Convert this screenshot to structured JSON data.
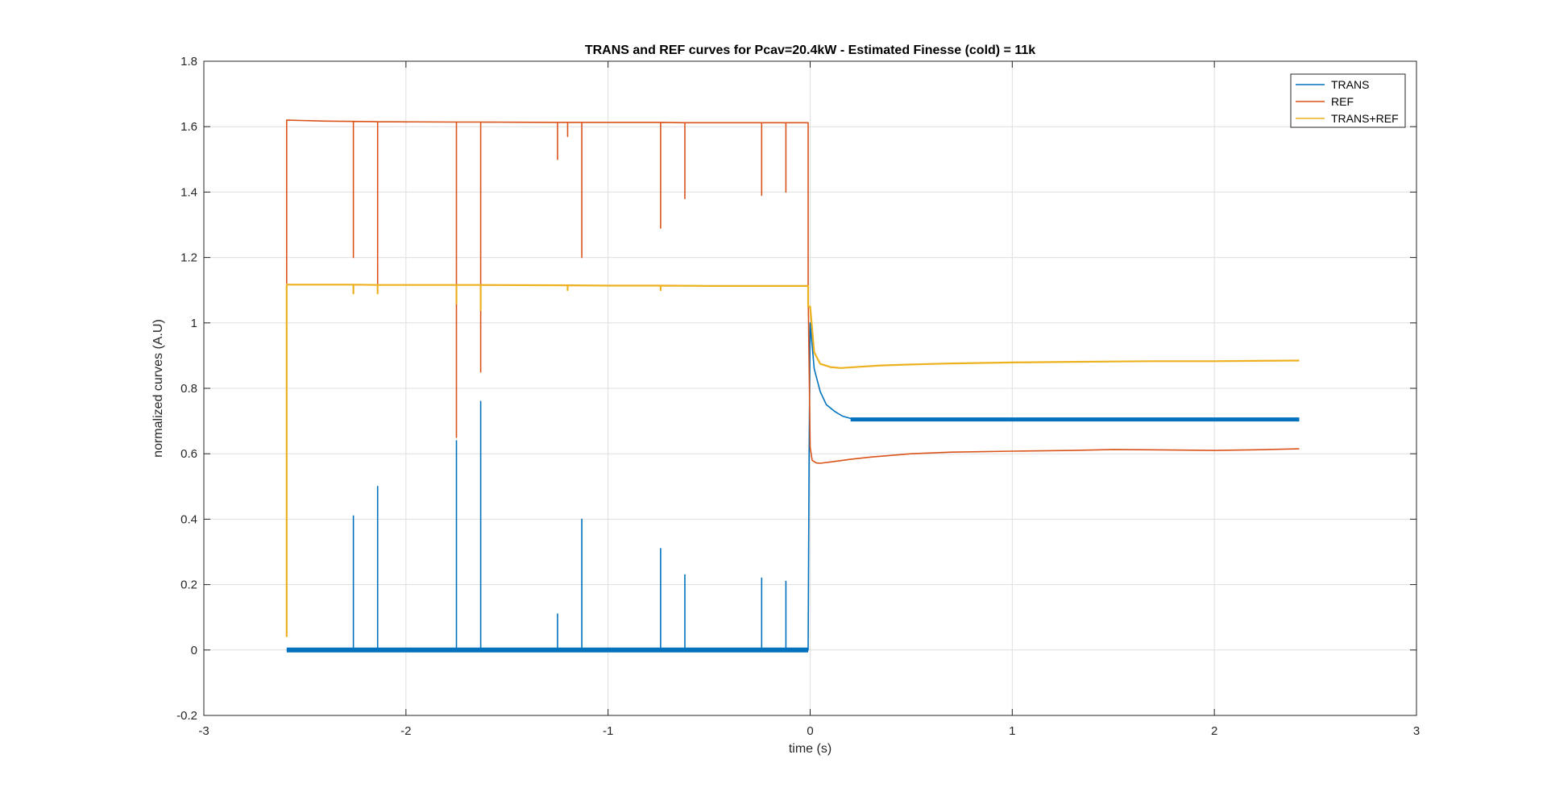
{
  "chart_data": {
    "type": "line",
    "title": "TRANS and REF curves for Pcav=20.4kW - Estimated Finesse (cold) = 11k",
    "xlabel": "time (s)",
    "ylabel": "normalized curves (A.U)",
    "xlim": [
      -3,
      3
    ],
    "ylim": [
      -0.2,
      1.8
    ],
    "xticks": [
      -3,
      -2,
      -1,
      0,
      1,
      2,
      3
    ],
    "xtick_labels": [
      "-3",
      "-2",
      "-1",
      "0",
      "1",
      "2",
      "3"
    ],
    "yticks": [
      -0.2,
      0,
      0.2,
      0.4,
      0.6,
      0.8,
      1,
      1.2,
      1.4,
      1.6,
      1.8
    ],
    "ytick_labels": [
      "-0.2",
      "0",
      "0.2",
      "0.4",
      "0.6",
      "0.8",
      "1",
      "1.2",
      "1.4",
      "1.6",
      "1.8"
    ],
    "grid": true,
    "legend_position": "top-right",
    "series": [
      {
        "name": "TRANS",
        "color": "#0072BD",
        "x": [
          -2.59,
          -2.26,
          -2.26,
          -2.26,
          -2.14,
          -2.14,
          -2.14,
          -1.75,
          -1.75,
          -1.75,
          -1.63,
          -1.63,
          -1.63,
          -1.25,
          -1.25,
          -1.25,
          -1.13,
          -1.13,
          -1.13,
          -0.74,
          -0.74,
          -0.74,
          -0.62,
          -0.62,
          -0.62,
          -0.24,
          -0.24,
          -0.24,
          -0.12,
          -0.12,
          -0.12,
          -0.01,
          -0.005,
          0.0,
          0.02,
          0.05,
          0.08,
          0.12,
          0.16,
          0.2,
          0.3,
          0.5,
          0.8,
          1.0,
          1.3,
          1.6,
          2.0,
          2.2,
          2.42
        ],
        "y": [
          0.0,
          0.0,
          0.41,
          0.0,
          0.0,
          0.5,
          0.0,
          0.0,
          0.64,
          0.0,
          0.0,
          0.76,
          0.0,
          0.0,
          0.11,
          0.0,
          0.0,
          0.4,
          0.0,
          0.0,
          0.31,
          0.0,
          0.0,
          0.23,
          0.0,
          0.0,
          0.22,
          0.0,
          0.0,
          0.21,
          0.0,
          0.0,
          0.6,
          1.0,
          0.86,
          0.79,
          0.75,
          0.73,
          0.715,
          0.708,
          0.706,
          0.705,
          0.705,
          0.705,
          0.705,
          0.705,
          0.705,
          0.705,
          0.705
        ]
      },
      {
        "name": "REF",
        "color": "#D95319",
        "x": [
          -2.59,
          -2.59,
          -2.4,
          -2.26,
          -2.26,
          -2.26,
          -2.14,
          -2.14,
          -2.14,
          -1.75,
          -1.75,
          -1.75,
          -1.63,
          -1.63,
          -1.63,
          -1.25,
          -1.25,
          -1.25,
          -1.2,
          -1.2,
          -1.2,
          -1.13,
          -1.13,
          -1.13,
          -0.74,
          -0.74,
          -0.74,
          -0.62,
          -0.62,
          -0.62,
          -0.24,
          -0.24,
          -0.24,
          -0.12,
          -0.12,
          -0.12,
          -0.01,
          -0.01,
          0.0,
          0.01,
          0.03,
          0.05,
          0.1,
          0.2,
          0.3,
          0.5,
          0.7,
          1.0,
          1.3,
          1.5,
          1.7,
          2.0,
          2.2,
          2.42
        ],
        "y": [
          1.12,
          1.62,
          1.617,
          1.616,
          1.2,
          1.616,
          1.615,
          1.12,
          1.615,
          1.614,
          0.65,
          1.614,
          1.614,
          0.85,
          1.614,
          1.613,
          1.5,
          1.613,
          1.613,
          1.57,
          1.613,
          1.613,
          1.2,
          1.613,
          1.613,
          1.29,
          1.613,
          1.612,
          1.38,
          1.612,
          1.612,
          1.39,
          1.612,
          1.612,
          1.4,
          1.612,
          1.612,
          1.1,
          0.62,
          0.58,
          0.572,
          0.571,
          0.575,
          0.583,
          0.59,
          0.6,
          0.605,
          0.608,
          0.61,
          0.613,
          0.612,
          0.61,
          0.612,
          0.615
        ]
      },
      {
        "name": "TRANS+REF",
        "color": "#EDB120",
        "x": [
          -2.59,
          -2.59,
          -2.4,
          -2.26,
          -2.26,
          -2.26,
          -2.14,
          -2.14,
          -2.14,
          -1.75,
          -1.75,
          -1.75,
          -1.63,
          -1.63,
          -1.63,
          -1.2,
          -1.2,
          -1.2,
          -1.0,
          -0.74,
          -0.74,
          -0.74,
          -0.5,
          -0.2,
          -0.01,
          -0.01,
          0.0,
          0.02,
          0.05,
          0.1,
          0.15,
          0.25,
          0.35,
          0.5,
          0.7,
          1.0,
          1.3,
          1.5,
          1.7,
          2.0,
          2.2,
          2.42
        ],
        "y": [
          0.04,
          1.117,
          1.117,
          1.117,
          1.09,
          1.117,
          1.116,
          1.09,
          1.116,
          1.116,
          1.06,
          1.116,
          1.116,
          1.04,
          1.116,
          1.115,
          1.1,
          1.115,
          1.114,
          1.114,
          1.1,
          1.114,
          1.113,
          1.113,
          1.113,
          1.05,
          1.05,
          0.91,
          0.875,
          0.865,
          0.862,
          0.866,
          0.87,
          0.873,
          0.876,
          0.879,
          0.881,
          0.882,
          0.883,
          0.883,
          0.884,
          0.885
        ]
      }
    ]
  }
}
